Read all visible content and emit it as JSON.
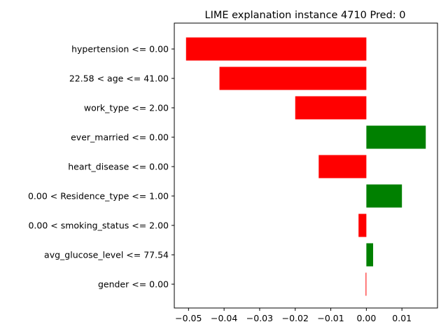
{
  "chart_data": {
    "type": "bar",
    "orientation": "horizontal",
    "title": "LIME explanation instance 4710 Pred: 0",
    "xlabel": "",
    "ylabel": "",
    "xlim": [
      -0.054,
      0.02
    ],
    "xticks": [
      -0.05,
      -0.04,
      -0.03,
      -0.02,
      -0.01,
      0.0,
      0.01
    ],
    "xtick_labels": [
      "−0.05",
      "−0.04",
      "−0.03",
      "−0.02",
      "−0.01",
      "0.00",
      "0.01"
    ],
    "categories": [
      "hypertension <= 0.00",
      "22.58 < age <= 41.00",
      "work_type <= 2.00",
      "ever_married <= 0.00",
      "heart_disease <= 0.00",
      "0.00 < Residence_type <= 1.00",
      "0.00 < smoking_status <= 2.00",
      "avg_glucose_level <= 77.54",
      "gender <= 0.00"
    ],
    "values": [
      -0.0507,
      -0.0413,
      -0.02,
      0.0167,
      -0.0134,
      0.01,
      -0.0022,
      0.0019,
      -0.0002
    ],
    "colors": {
      "positive": "#008000",
      "negative": "#ff0000"
    },
    "grid": false,
    "legend": "none"
  }
}
